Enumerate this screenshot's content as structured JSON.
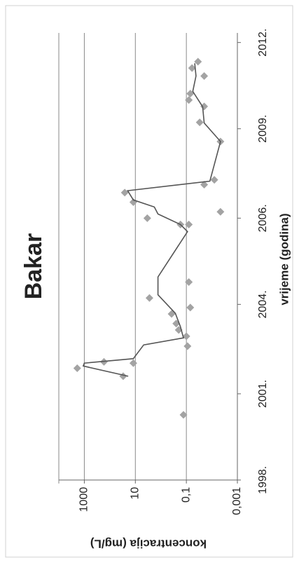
{
  "chart_data": {
    "type": "scatter",
    "title": "Bakar",
    "x_label": "vrijeme (godina)",
    "y_label": "koncentracija (mg/L)",
    "log_y": true,
    "grid": true,
    "xlim": [
      1998,
      2012
    ],
    "xticks": [
      {
        "value": 1998,
        "label": "1998."
      },
      {
        "value": 2000.7,
        "label": "2001."
      },
      {
        "value": 2003.5,
        "label": "2004."
      },
      {
        "value": 2006.2,
        "label": "2006."
      },
      {
        "value": 2009,
        "label": "2009."
      },
      {
        "value": 2011.7,
        "label": "2012."
      }
    ],
    "ylim": [
      0.001,
      10000
    ],
    "yticks": [
      1000,
      10,
      {
        "value": 0.1,
        "label": "0,1"
      },
      {
        "value": 0.001,
        "label": "0,001"
      }
    ],
    "series": [
      {
        "kind": "points",
        "color": "#a3a3a3",
        "x": [
          2000.04,
          2001.5,
          2001.7,
          2001.66,
          2001.25,
          2002.19,
          2002.5,
          2002.7,
          2002.9,
          2003.2,
          2003.4,
          2003.7,
          2004.2,
          2006.0,
          2006.0,
          2006.2,
          2006.4,
          2006.7,
          2007.0,
          2007.25,
          2007.4,
          2008.6,
          2009.2,
          2009.7,
          2009.9,
          2010.1,
          2010.65,
          2010.9,
          2011.1
        ],
        "values": [
          0.13,
          1900,
          170,
          12,
          30,
          0.09,
          0.1,
          0.2,
          0.25,
          0.38,
          0.07,
          2.8,
          0.08,
          0.08,
          0.17,
          3.4,
          0.0046,
          12,
          26,
          0.02,
          0.008,
          0.0046,
          0.03,
          0.02,
          0.08,
          0.07,
          0.02,
          0.06,
          0.035
        ]
      },
      {
        "kind": "line",
        "color": "#555555",
        "x": [
          2001.25,
          2001.57,
          2001.66,
          2001.8,
          2002.23,
          2002.45,
          2002.8,
          2003.22,
          2003.8,
          2004.36,
          2005.78,
          2006.0,
          2006.33,
          2006.55,
          2006.77,
          2007.06,
          2007.36,
          2008.6,
          2009.18,
          2009.69,
          2010.17,
          2010.65,
          2011.05
        ],
        "values": [
          19,
          1100,
          1000,
          12,
          4.7,
          0.13,
          0.17,
          0.27,
          1.3,
          1.3,
          0.09,
          0.17,
          1.3,
          1.8,
          12,
          20,
          0.012,
          0.0046,
          0.02,
          0.023,
          0.056,
          0.042,
          0.047
        ]
      }
    ]
  }
}
